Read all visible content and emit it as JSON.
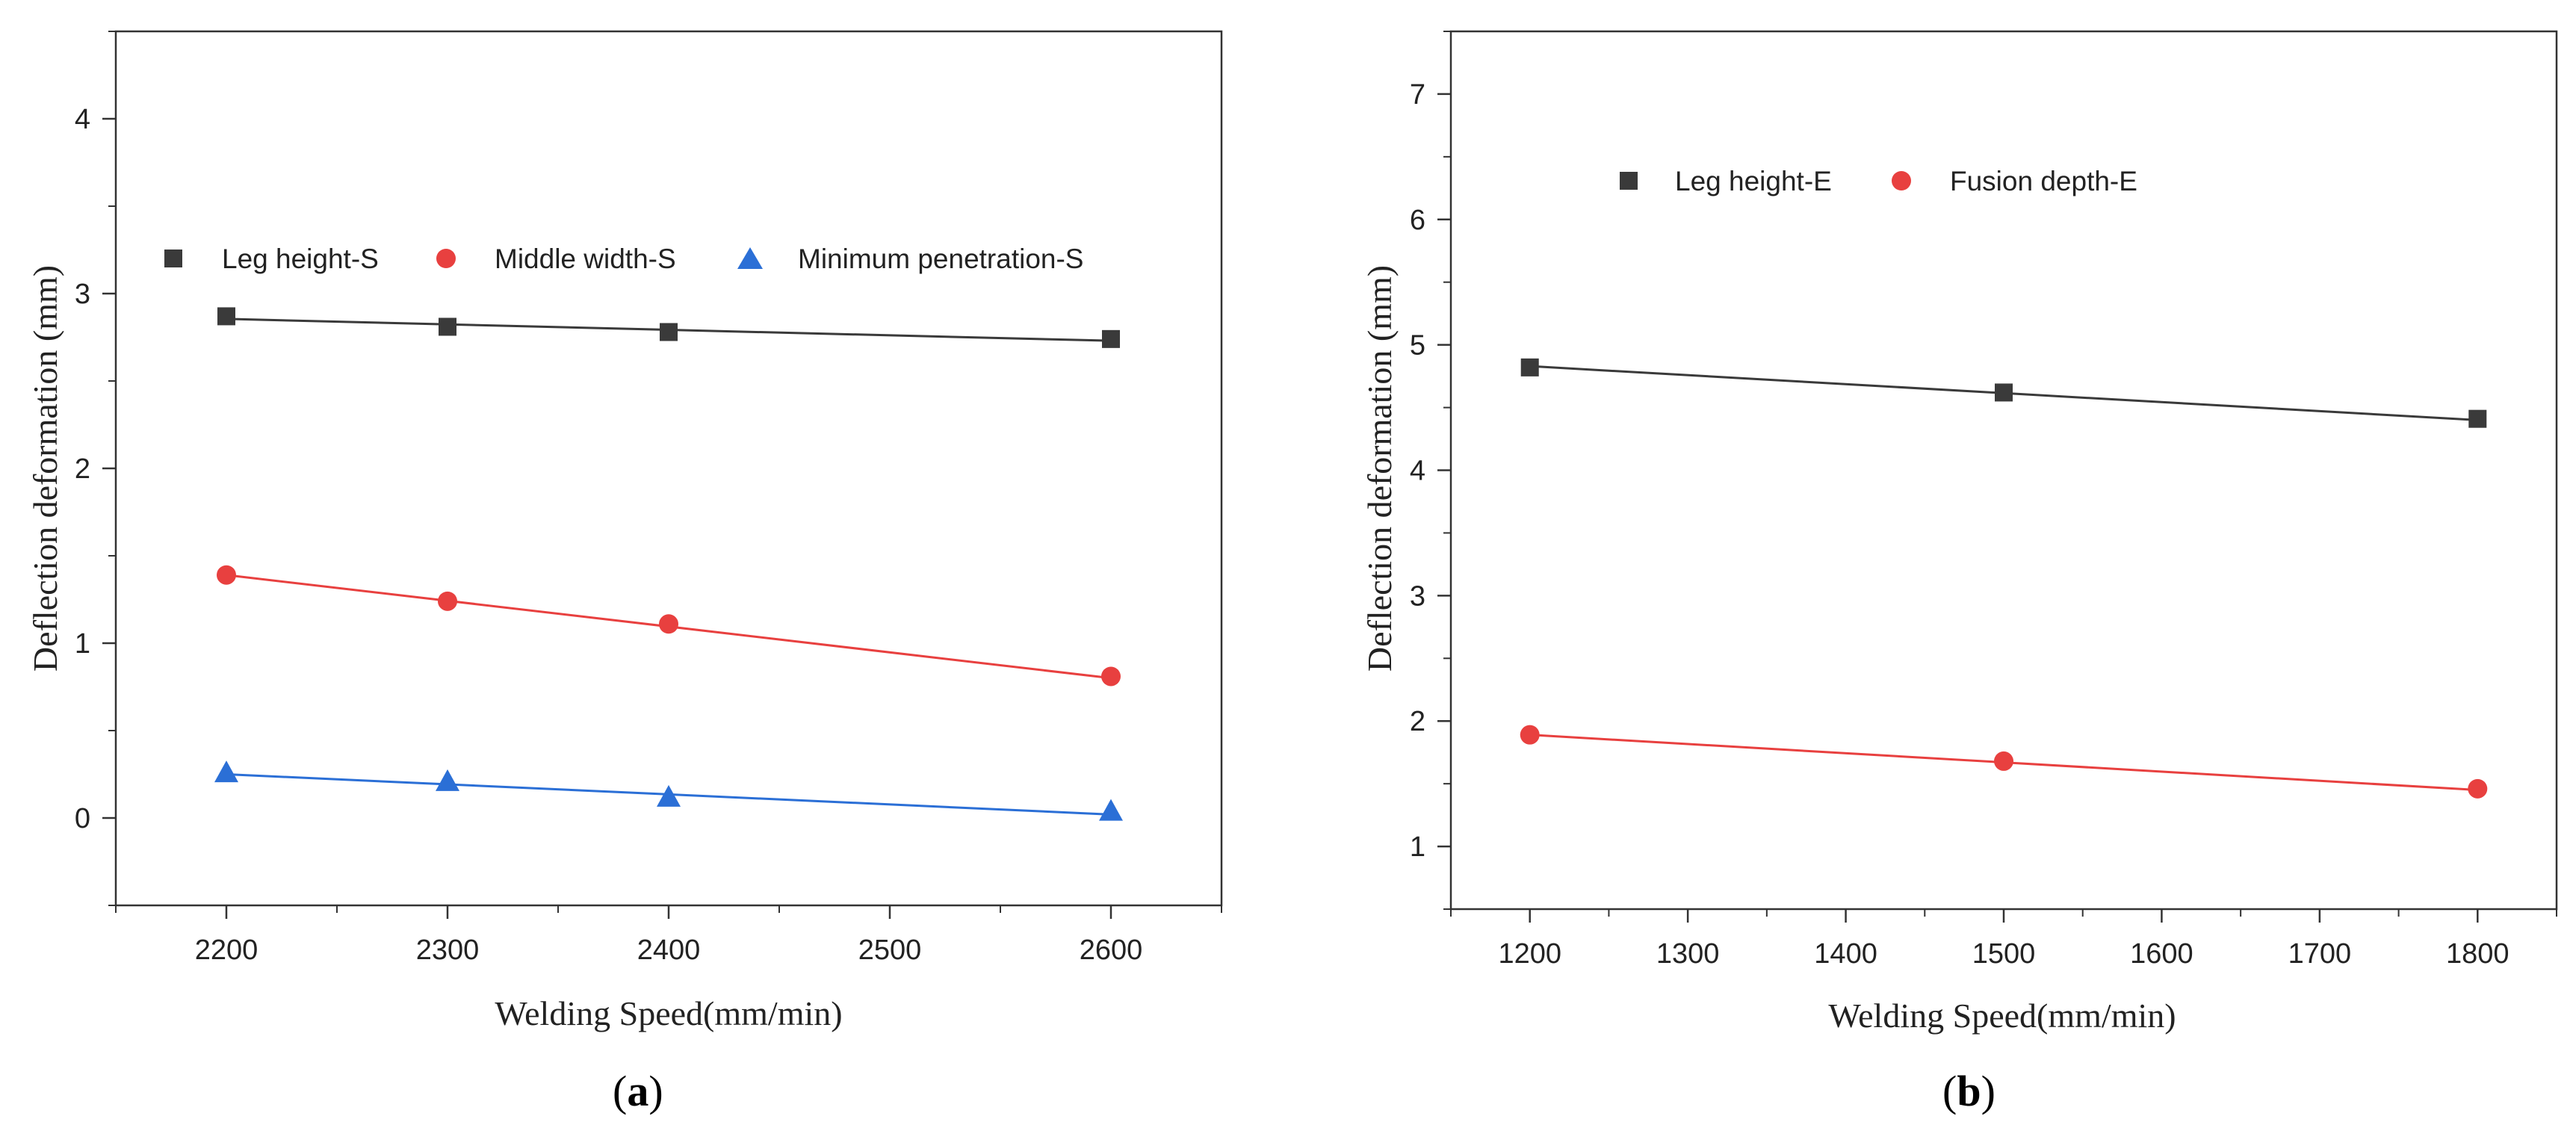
{
  "chart_data": [
    {
      "type": "line",
      "panel": "a",
      "xlabel": "Welding Speed(mm/min)",
      "ylabel": "Deflection deformation (mm)",
      "xlim": [
        2150,
        2650
      ],
      "ylim": [
        -0.5,
        4.5
      ],
      "xticks": [
        2200,
        2300,
        2400,
        2500,
        2600
      ],
      "yticks": [
        0,
        1,
        2,
        3,
        4
      ],
      "x": [
        2200,
        2300,
        2400,
        2600
      ],
      "grid": false,
      "legend_position": "middle",
      "series": [
        {
          "name": "Leg height-S",
          "marker": "square",
          "color": "#3a3a3a",
          "values": [
            2.87,
            2.81,
            2.78,
            2.74
          ],
          "fit": [
            2.855,
            2.73
          ]
        },
        {
          "name": "Middle width-S",
          "marker": "circle",
          "color": "#e8403f",
          "values": [
            1.39,
            1.24,
            1.11,
            0.81
          ],
          "fit": [
            1.39,
            0.8
          ]
        },
        {
          "name": "Minimum penetration-S",
          "marker": "triangle",
          "color": "#2b6fd6",
          "values": [
            0.26,
            0.21,
            0.12,
            0.04
          ],
          "fit": [
            0.25,
            0.02
          ]
        }
      ],
      "caption": {
        "open": "(",
        "letter": "a",
        "close": ")"
      }
    },
    {
      "type": "line",
      "panel": "b",
      "xlabel": "Welding Speed(mm/min)",
      "ylabel": "Deflection deformation (mm)",
      "xlim": [
        1150,
        1850
      ],
      "ylim": [
        0.5,
        7.5
      ],
      "xticks": [
        1200,
        1300,
        1400,
        1500,
        1600,
        1700,
        1800
      ],
      "yticks": [
        1,
        2,
        3,
        4,
        5,
        6,
        7
      ],
      "x": [
        1200,
        1500,
        1800
      ],
      "grid": false,
      "legend_position": "top-left",
      "series": [
        {
          "name": "Leg height-E",
          "marker": "square",
          "color": "#3a3a3a",
          "values": [
            4.82,
            4.62,
            4.41
          ],
          "fit": [
            4.83,
            4.4
          ]
        },
        {
          "name": "Fusion depth-E",
          "marker": "circle",
          "color": "#e8403f",
          "values": [
            1.89,
            1.68,
            1.46
          ],
          "fit": [
            1.89,
            1.45
          ]
        }
      ],
      "caption": {
        "open": "(",
        "letter": "b",
        "close": ")"
      }
    }
  ]
}
